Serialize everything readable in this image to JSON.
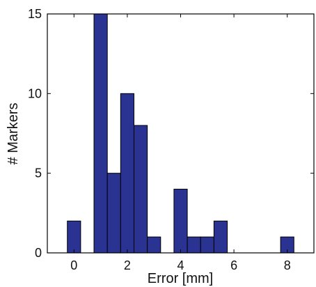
{
  "chart_data": {
    "type": "bar",
    "title": "",
    "xlabel": "Error [mm]",
    "ylabel": "# Markers",
    "xlim": [
      -1,
      9
    ],
    "ylim": [
      0,
      15
    ],
    "xticks": [
      "0",
      "2",
      "4",
      "6",
      "8"
    ],
    "yticks": [
      "0",
      "5",
      "10",
      "15"
    ],
    "bin_width": 0.5,
    "bins": [
      {
        "x": 0.0,
        "count": 2
      },
      {
        "x": 1.0,
        "count": 15
      },
      {
        "x": 1.5,
        "count": 5
      },
      {
        "x": 2.0,
        "count": 10
      },
      {
        "x": 2.5,
        "count": 8
      },
      {
        "x": 3.0,
        "count": 1
      },
      {
        "x": 4.0,
        "count": 4
      },
      {
        "x": 4.5,
        "count": 1
      },
      {
        "x": 5.0,
        "count": 1
      },
      {
        "x": 5.5,
        "count": 2
      },
      {
        "x": 8.0,
        "count": 1
      }
    ],
    "bar_color": "#2b3392",
    "grid": false,
    "legend": "none"
  }
}
